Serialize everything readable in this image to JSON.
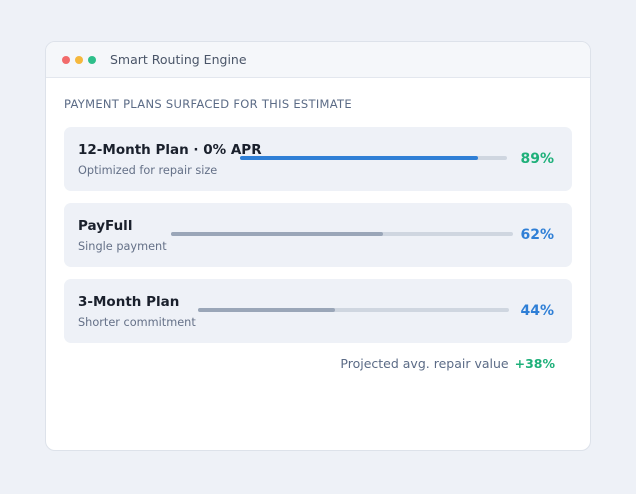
{
  "window": {
    "title": "Smart Routing Engine",
    "dots": [
      "#f26b6b",
      "#f5b83d",
      "#2ebf8a"
    ]
  },
  "section_label": "PAYMENT PLANS SURFACED FOR THIS ESTIMATE",
  "plans": [
    {
      "name": "12-Month Plan · 0% APR",
      "subtitle": "Optimized for repair size",
      "percent_label": "89%",
      "share": 0.89,
      "bar_color": "#2f7fd6",
      "label_color": "#1fb07a"
    },
    {
      "name": "PayFull",
      "subtitle": "Single payment",
      "percent_label": "62%",
      "share": 0.62,
      "bar_color": "#9aa6b8",
      "label_color": "#2f7fd6"
    },
    {
      "name": "3-Month Plan",
      "subtitle": "Shorter commitment",
      "percent_label": "44%",
      "share": 0.44,
      "bar_color": "#9aa6b8",
      "label_color": "#2f7fd6"
    }
  ],
  "footer": {
    "label": "Projected avg. repair value",
    "delta": "+38%"
  }
}
